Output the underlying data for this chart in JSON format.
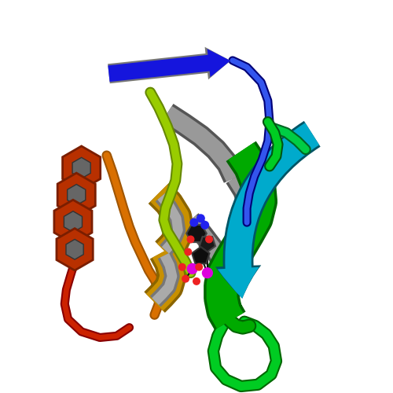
{
  "background_color": "#ffffff",
  "figure_size": [
    5.0,
    5.0
  ],
  "dpi": 100,
  "colors": {
    "red_helix": "#b83000",
    "red_helix_dark": "#7a1e00",
    "red_loop": "#cc2200",
    "orange_loop": "#d97000",
    "orange_loop_dark": "#a05500",
    "gold_helix": "#c89000",
    "gold_dark": "#8a6400",
    "blue_arrow": "#1515dd",
    "blue_dark": "#000088",
    "blue_loop": "#3355ee",
    "gray_strand": "#888888",
    "gray_dark": "#444444",
    "ygreen_loop": "#99cc00",
    "ygreen_dark": "#668800",
    "green_helix": "#00aa00",
    "green_dark": "#006600",
    "green_loop": "#00cc22",
    "cyan_arrow": "#00aacc",
    "cyan_dark": "#006688",
    "lig_carbon": "#222222",
    "lig_nitrogen": "#2222ee",
    "lig_oxygen": "#ee2222",
    "lig_phosphorus": "#dd00dd",
    "gray_hex": "#666666"
  }
}
